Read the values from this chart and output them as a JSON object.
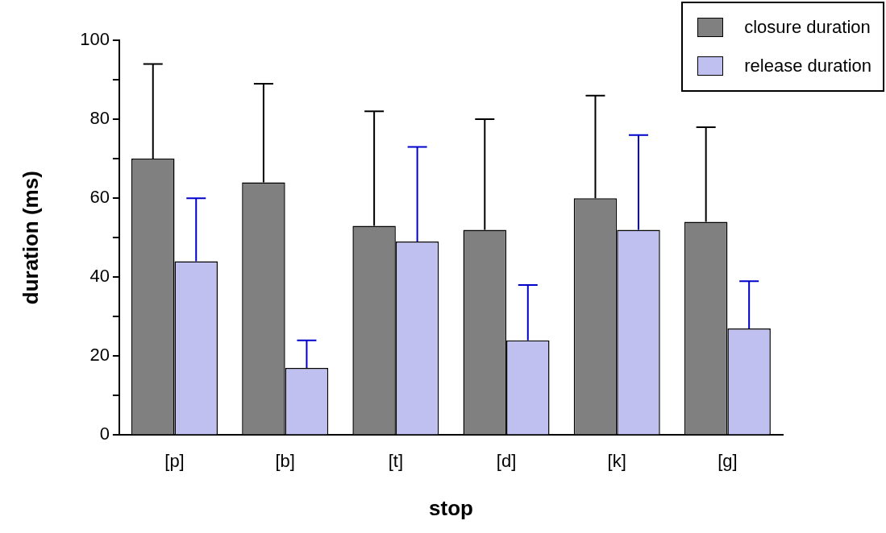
{
  "chart_data": {
    "type": "bar",
    "xlabel": "stop",
    "ylabel": "duration (ms)",
    "categories": [
      "[p]",
      "[b]",
      "[t]",
      "[d]",
      "[k]",
      "[g]"
    ],
    "series": [
      {
        "name": "closure duration",
        "color": "#808080",
        "values": [
          70,
          64,
          53,
          52,
          60,
          54
        ],
        "errors": [
          [
            70,
            94
          ],
          [
            64,
            89
          ],
          [
            53,
            82
          ],
          [
            52,
            80
          ],
          [
            60,
            86
          ],
          [
            54,
            78
          ]
        ]
      },
      {
        "name": "release duration",
        "color": "#c0c0f0",
        "values": [
          44,
          17,
          49,
          24,
          52,
          27
        ],
        "errors": [
          [
            44,
            60
          ],
          [
            17,
            24
          ],
          [
            49,
            73
          ],
          [
            24,
            38
          ],
          [
            52,
            76
          ],
          [
            27,
            39
          ]
        ]
      }
    ],
    "ylim": [
      0,
      100
    ],
    "yticks": [
      0,
      {
        "value": 10,
        "label": null
      },
      20,
      {
        "value": 30,
        "label": null
      },
      40,
      {
        "value": 50,
        "label": null
      },
      60,
      {
        "value": 70,
        "label": null
      },
      80,
      {
        "value": 90,
        "label": null
      },
      100
    ],
    "grid": false,
    "legend": "top right"
  }
}
